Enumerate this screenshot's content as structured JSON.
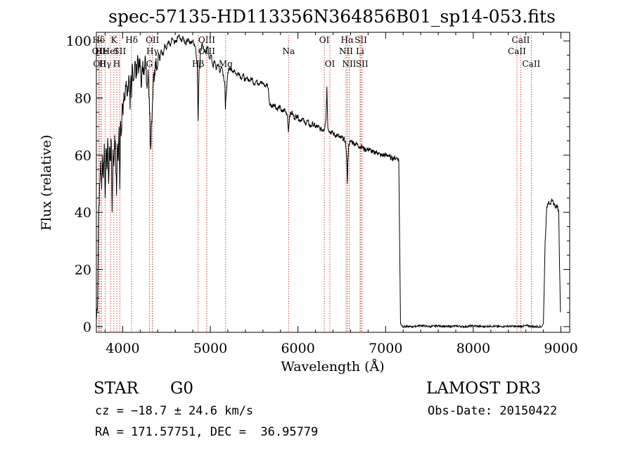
{
  "title": "spec-57135-HD113356N364856B01_sp14-053.fits",
  "chart_data": {
    "type": "line",
    "xlabel": "Wavelength (Å)",
    "ylabel": "Flux (relative)",
    "xlim": [
      3700,
      9100
    ],
    "ylim": [
      -2,
      103
    ],
    "x_ticks": [
      4000,
      5000,
      6000,
      7000,
      8000,
      9000
    ],
    "y_ticks": [
      0,
      20,
      40,
      60,
      80,
      100
    ],
    "series": [
      {
        "name": "flux",
        "points": [
          [
            3700,
            2
          ],
          [
            3715,
            10
          ],
          [
            3725,
            40
          ],
          [
            3740,
            50
          ],
          [
            3750,
            58
          ],
          [
            3760,
            48
          ],
          [
            3770,
            60
          ],
          [
            3780,
            52
          ],
          [
            3790,
            64
          ],
          [
            3800,
            45
          ],
          [
            3810,
            62
          ],
          [
            3820,
            55
          ],
          [
            3830,
            66
          ],
          [
            3840,
            50
          ],
          [
            3850,
            63
          ],
          [
            3860,
            58
          ],
          [
            3870,
            65
          ],
          [
            3880,
            40
          ],
          [
            3890,
            62
          ],
          [
            3900,
            56
          ],
          [
            3910,
            67
          ],
          [
            3920,
            60
          ],
          [
            3930,
            46
          ],
          [
            3940,
            64
          ],
          [
            3950,
            58
          ],
          [
            3960,
            70
          ],
          [
            3968,
            48
          ],
          [
            3975,
            72
          ],
          [
            3985,
            68
          ],
          [
            3995,
            78
          ],
          [
            4005,
            74
          ],
          [
            4015,
            82
          ],
          [
            4025,
            79
          ],
          [
            4040,
            86
          ],
          [
            4055,
            81
          ],
          [
            4070,
            88
          ],
          [
            4085,
            76
          ],
          [
            4095,
            88
          ],
          [
            4102,
            80
          ],
          [
            4110,
            92
          ],
          [
            4125,
            86
          ],
          [
            4140,
            93
          ],
          [
            4155,
            87
          ],
          [
            4170,
            95
          ],
          [
            4185,
            90
          ],
          [
            4200,
            92
          ],
          [
            4215,
            84
          ],
          [
            4230,
            93
          ],
          [
            4245,
            88
          ],
          [
            4260,
            94
          ],
          [
            4275,
            85
          ],
          [
            4290,
            90
          ],
          [
            4300,
            80
          ],
          [
            4310,
            75
          ],
          [
            4320,
            62
          ],
          [
            4330,
            72
          ],
          [
            4340,
            78
          ],
          [
            4350,
            86
          ],
          [
            4365,
            90
          ],
          [
            4380,
            94
          ],
          [
            4395,
            90
          ],
          [
            4410,
            96
          ],
          [
            4425,
            93
          ],
          [
            4440,
            97
          ],
          [
            4460,
            95
          ],
          [
            4480,
            99
          ],
          [
            4500,
            97
          ],
          [
            4520,
            100
          ],
          [
            4545,
            98
          ],
          [
            4565,
            101
          ],
          [
            4590,
            99
          ],
          [
            4615,
            100
          ],
          [
            4640,
            102
          ],
          [
            4665,
            100
          ],
          [
            4690,
            101
          ],
          [
            4720,
            99
          ],
          [
            4745,
            101
          ],
          [
            4770,
            99
          ],
          [
            4800,
            100
          ],
          [
            4830,
            98
          ],
          [
            4850,
            92
          ],
          [
            4861,
            72
          ],
          [
            4872,
            90
          ],
          [
            4890,
            97
          ],
          [
            4910,
            99
          ],
          [
            4930,
            97
          ],
          [
            4950,
            96
          ],
          [
            4970,
            98
          ],
          [
            4990,
            94
          ],
          [
            5010,
            95
          ],
          [
            5030,
            91
          ],
          [
            5050,
            93
          ],
          [
            5070,
            90
          ],
          [
            5090,
            92
          ],
          [
            5110,
            89
          ],
          [
            5130,
            91
          ],
          [
            5150,
            88
          ],
          [
            5167,
            84
          ],
          [
            5172,
            76
          ],
          [
            5178,
            80
          ],
          [
            5184,
            82
          ],
          [
            5200,
            89
          ],
          [
            5225,
            91
          ],
          [
            5250,
            89
          ],
          [
            5275,
            90
          ],
          [
            5300,
            88
          ],
          [
            5325,
            89
          ],
          [
            5350,
            87
          ],
          [
            5375,
            88
          ],
          [
            5400,
            86
          ],
          [
            5425,
            87
          ],
          [
            5450,
            86
          ],
          [
            5475,
            87
          ],
          [
            5500,
            85
          ],
          [
            5525,
            86
          ],
          [
            5550,
            85
          ],
          [
            5575,
            86
          ],
          [
            5600,
            85
          ],
          [
            5625,
            84
          ],
          [
            5650,
            85
          ],
          [
            5665,
            82
          ],
          [
            5675,
            78
          ],
          [
            5700,
            77
          ],
          [
            5730,
            78
          ],
          [
            5760,
            76
          ],
          [
            5790,
            77
          ],
          [
            5820,
            75
          ],
          [
            5850,
            76
          ],
          [
            5880,
            74
          ],
          [
            5891,
            68
          ],
          [
            5896,
            70
          ],
          [
            5905,
            74
          ],
          [
            5930,
            75
          ],
          [
            5960,
            73
          ],
          [
            5990,
            74
          ],
          [
            6020,
            72
          ],
          [
            6050,
            73
          ],
          [
            6080,
            71
          ],
          [
            6110,
            72
          ],
          [
            6140,
            70
          ],
          [
            6170,
            71
          ],
          [
            6200,
            70
          ],
          [
            6230,
            70
          ],
          [
            6260,
            69
          ],
          [
            6290,
            69
          ],
          [
            6300,
            69
          ],
          [
            6310,
            71
          ],
          [
            6320,
            73
          ],
          [
            6330,
            84
          ],
          [
            6340,
            70
          ],
          [
            6365,
            68
          ],
          [
            6390,
            68
          ],
          [
            6420,
            67
          ],
          [
            6450,
            67
          ],
          [
            6480,
            66
          ],
          [
            6510,
            66
          ],
          [
            6540,
            65
          ],
          [
            6555,
            60
          ],
          [
            6563,
            50
          ],
          [
            6570,
            58
          ],
          [
            6580,
            64
          ],
          [
            6610,
            65
          ],
          [
            6640,
            64
          ],
          [
            6670,
            64
          ],
          [
            6700,
            63
          ],
          [
            6730,
            63
          ],
          [
            6760,
            62
          ],
          [
            6790,
            62
          ],
          [
            6820,
            62
          ],
          [
            6850,
            61
          ],
          [
            6880,
            61
          ],
          [
            6910,
            61
          ],
          [
            6940,
            60
          ],
          [
            6970,
            60
          ],
          [
            7000,
            60
          ],
          [
            7030,
            60
          ],
          [
            7060,
            59
          ],
          [
            7090,
            59
          ],
          [
            7120,
            59
          ],
          [
            7140,
            59
          ],
          [
            7150,
            58
          ],
          [
            7160,
            30
          ],
          [
            7170,
            1
          ],
          [
            7200,
            0
          ],
          [
            7300,
            0
          ],
          [
            7400,
            0.4
          ],
          [
            7500,
            0
          ],
          [
            7600,
            0.3
          ],
          [
            7700,
            0
          ],
          [
            7800,
            0.2
          ],
          [
            7900,
            0
          ],
          [
            8000,
            0.3
          ],
          [
            8100,
            0
          ],
          [
            8200,
            0.2
          ],
          [
            8300,
            0
          ],
          [
            8400,
            0.2
          ],
          [
            8500,
            0
          ],
          [
            8600,
            0.3
          ],
          [
            8700,
            0
          ],
          [
            8780,
            0
          ],
          [
            8800,
            1
          ],
          [
            8820,
            30
          ],
          [
            8840,
            42
          ],
          [
            8860,
            44
          ],
          [
            8880,
            43
          ],
          [
            8900,
            44
          ],
          [
            8920,
            43
          ],
          [
            8940,
            42
          ],
          [
            8960,
            42
          ],
          [
            8975,
            40
          ],
          [
            8985,
            20
          ],
          [
            8995,
            5
          ]
        ]
      }
    ],
    "lines": [
      {
        "label": "Hδ",
        "x": 3727,
        "row": 0
      },
      {
        "label": "OII",
        "x": 3727,
        "row": 1
      },
      {
        "label": "OII",
        "x": 3740,
        "row": 2
      },
      {
        "label": "He",
        "x": 3760,
        "row": 1
      },
      {
        "label": "Hγ",
        "x": 3800,
        "row": 2
      },
      {
        "label": "K",
        "x": 3900,
        "row": 0
      },
      {
        "label": "HeI",
        "x": 3860,
        "row": 1
      },
      {
        "label": "H",
        "x": 3933,
        "row": 2
      },
      {
        "label": "SII",
        "x": 3968,
        "row": 1
      },
      {
        "label": "Hδ",
        "x": 4102,
        "row": 0
      },
      {
        "label": "OII",
        "x": 4340,
        "row": 0
      },
      {
        "label": "Hγ",
        "x": 4340,
        "row": 1
      },
      {
        "label": "G",
        "x": 4305,
        "row": 2
      },
      {
        "label": "Hβ",
        "x": 4861,
        "row": 2
      },
      {
        "label": "OIII",
        "x": 4959,
        "row": 0
      },
      {
        "label": "OIII",
        "x": 4959,
        "row": 1
      },
      {
        "label": "Mg",
        "x": 5175,
        "row": 2
      },
      {
        "label": "Na",
        "x": 5893,
        "row": 1
      },
      {
        "label": "OI",
        "x": 6300,
        "row": 0
      },
      {
        "label": "OI",
        "x": 6364,
        "row": 2
      },
      {
        "label": "Hα",
        "x": 6563,
        "row": 0
      },
      {
        "label": "NII",
        "x": 6548,
        "row": 1
      },
      {
        "label": "NII",
        "x": 6584,
        "row": 2
      },
      {
        "label": "SII",
        "x": 6717,
        "row": 0
      },
      {
        "label": "Li",
        "x": 6708,
        "row": 1
      },
      {
        "label": "SII",
        "x": 6731,
        "row": 2
      },
      {
        "label": "CaII",
        "x": 8542,
        "row": 0
      },
      {
        "label": "CaII",
        "x": 8498,
        "row": 1
      },
      {
        "label": "CaII",
        "x": 8662,
        "row": 2
      }
    ]
  },
  "info": {
    "object_class": "STAR",
    "subclass": "G0",
    "survey": "LAMOST DR3",
    "redshift": "cz = −18.7 ± 24.6 km/s",
    "obs_date": "Obs-Date: 20150422",
    "coords": "RA = 171.57751, DEC =  36.95779"
  }
}
